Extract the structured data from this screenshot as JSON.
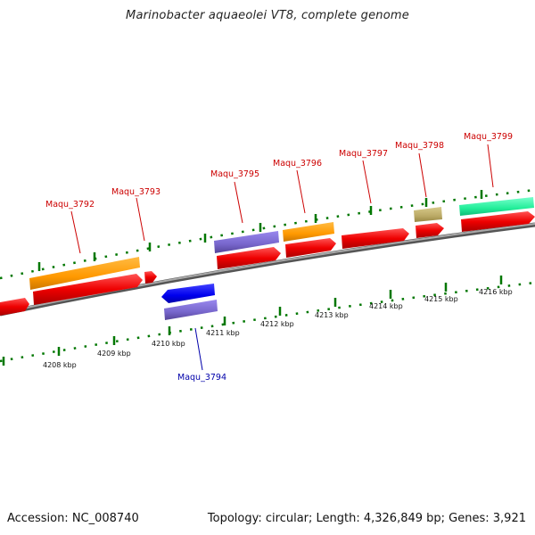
{
  "title": "Marinobacter aquaeolei VT8, complete genome",
  "footer": {
    "accession": "Accession: NC_008740",
    "summary": "Topology: circular; Length: 4,326,849 bp; Genes: 3,921"
  },
  "genes": [
    {
      "label": "Maqu_3792",
      "color": "#cc0000"
    },
    {
      "label": "Maqu_3793",
      "color": "#cc0000"
    },
    {
      "label": "Maqu_3794",
      "color": "#0000aa"
    },
    {
      "label": "Maqu_3795",
      "color": "#cc0000"
    },
    {
      "label": "Maqu_3796",
      "color": "#cc0000"
    },
    {
      "label": "Maqu_3797",
      "color": "#cc0000"
    },
    {
      "label": "Maqu_3798",
      "color": "#cc0000"
    },
    {
      "label": "Maqu_3799",
      "color": "#cc0000"
    }
  ],
  "kbp_ticks": [
    "4208 kbp",
    "4209 kbp",
    "4210 kbp",
    "4211 kbp",
    "4212 kbp",
    "4213 kbp",
    "4214 kbp",
    "4215 kbp",
    "4216 kbp"
  ],
  "colors": {
    "cds": "#ee0000",
    "orange": "#ff9900",
    "purple": "#7766cc",
    "blue": "#0000ee",
    "olive": "#bbaa66",
    "teal": "#22ee99",
    "backbone": "#888888",
    "tick": "#007700"
  }
}
